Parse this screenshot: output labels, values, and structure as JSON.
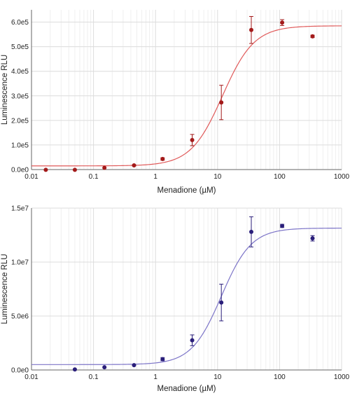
{
  "chart_data": [
    {
      "type": "scatter",
      "title": "",
      "xlabel": "Menadione (µM)",
      "ylabel": "Luminescence RLU",
      "xscale": "log",
      "xlim": [
        0.01,
        1000
      ],
      "ylim": [
        0,
        650000
      ],
      "grid": true,
      "x_ticks": [
        0.01,
        0.1,
        1,
        10,
        100,
        1000
      ],
      "x_tick_labels": [
        "0.01",
        "0.1",
        "1",
        "10",
        "100",
        "1000"
      ],
      "y_ticks": [
        0,
        100000,
        200000,
        300000,
        400000,
        500000,
        600000
      ],
      "y_tick_labels": [
        "0.0e0",
        "1.0e5",
        "2.0e5",
        "3.0e5",
        "4.0e5",
        "5.0e5",
        "6.0e5"
      ],
      "colors": {
        "series": "#a31a1a",
        "fit": "#e05a5a"
      },
      "series": [
        {
          "x": [
            0.017,
            0.05,
            0.15,
            0.45,
            1.3,
            3.9,
            11.5,
            35,
            110,
            340
          ],
          "y": [
            -1000,
            -1000,
            7000,
            17000,
            43000,
            120000,
            273000,
            568000,
            598000,
            542000
          ],
          "error": [
            0,
            0,
            0,
            2000,
            5000,
            23000,
            70000,
            55000,
            12000,
            5000
          ]
        }
      ],
      "fit": {
        "model": "4PL",
        "bottom": 15000,
        "top": 585000,
        "ec50": 12,
        "hill": 1.7
      }
    },
    {
      "type": "scatter",
      "title": "",
      "xlabel": "Menadione (µM)",
      "ylabel": "Luminescence RLU",
      "xscale": "log",
      "xlim": [
        0.01,
        1000
      ],
      "ylim": [
        0,
        15000000
      ],
      "grid": true,
      "x_ticks": [
        0.01,
        0.1,
        1,
        10,
        100,
        1000
      ],
      "x_tick_labels": [
        "0.01",
        "0.1",
        "1",
        "10",
        "100",
        "1000"
      ],
      "y_ticks": [
        0,
        5000000,
        10000000,
        15000000
      ],
      "y_tick_labels": [
        "0.0e0",
        "5.0e6",
        "1.0e7",
        "1.5e7"
      ],
      "colors": {
        "series": "#2a1e7a",
        "fit": "#7d75c8"
      },
      "series": [
        {
          "x": [
            0.05,
            0.15,
            0.45,
            1.3,
            3.9,
            11.5,
            35,
            110,
            340
          ],
          "y": [
            50000,
            250000,
            450000,
            1000000,
            2750000,
            6250000,
            12800000,
            13350000,
            12200000
          ],
          "error": [
            0,
            0,
            0,
            150000,
            500000,
            1700000,
            1400000,
            150000,
            250000
          ]
        }
      ],
      "fit": {
        "model": "4PL",
        "bottom": 500000,
        "top": 13150000,
        "ec50": 11.5,
        "hill": 1.8
      }
    }
  ]
}
